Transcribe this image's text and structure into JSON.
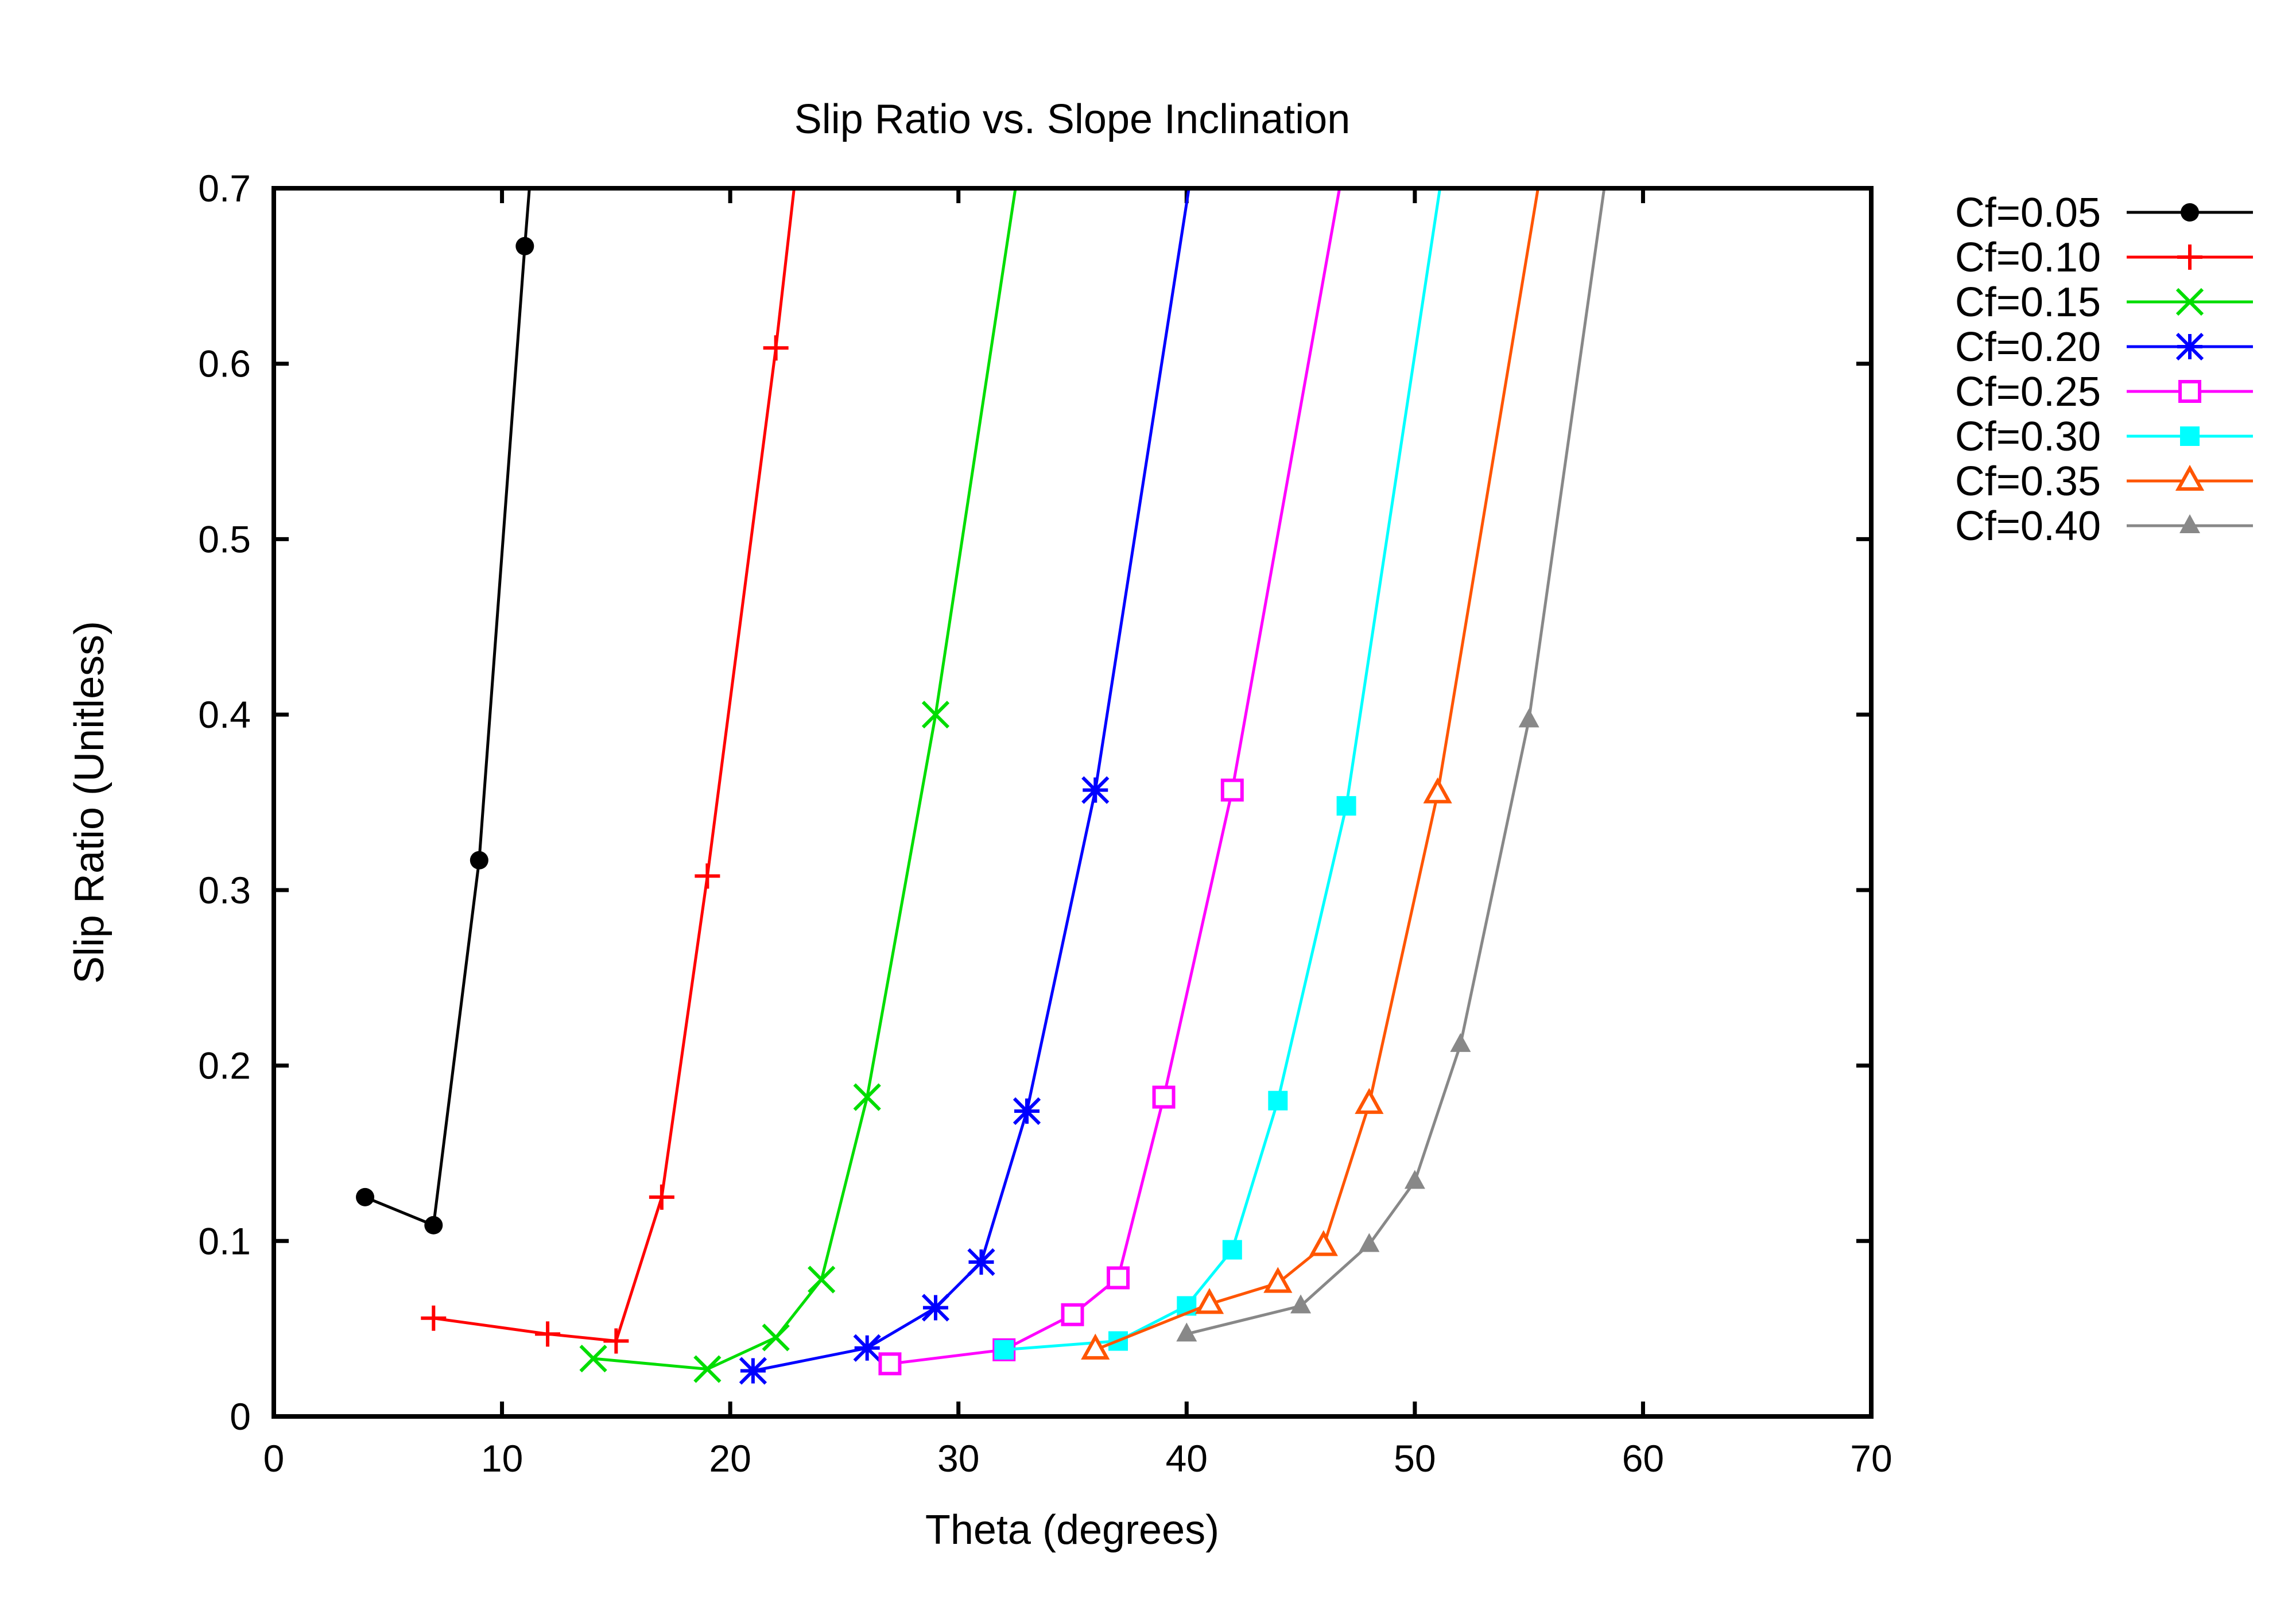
{
  "chart_data": {
    "type": "line",
    "title": "Slip Ratio vs. Slope Inclination",
    "xlabel": "Theta (degrees)",
    "ylabel": "Slip Ratio (Unitless)",
    "xlim": [
      0,
      70
    ],
    "ylim": [
      0,
      0.7
    ],
    "xticks": [
      "0",
      "10",
      "20",
      "30",
      "40",
      "50",
      "60",
      "70"
    ],
    "yticks": [
      "0",
      "0.1",
      "0.2",
      "0.3",
      "0.4",
      "0.5",
      "0.6",
      "0.7"
    ],
    "grid": false,
    "legend_position": "outside-top-right",
    "series": [
      {
        "name": "Cf=0.05",
        "color": "#000000",
        "marker": "filled-circle",
        "x": [
          4,
          7,
          9,
          11,
          11.2
        ],
        "y": [
          0.125,
          0.109,
          0.317,
          0.667,
          0.7
        ]
      },
      {
        "name": "Cf=0.10",
        "color": "#ff0000",
        "marker": "plus",
        "x": [
          7,
          12,
          15,
          17,
          19,
          22,
          22.8
        ],
        "y": [
          0.056,
          0.047,
          0.043,
          0.125,
          0.308,
          0.609,
          0.7
        ]
      },
      {
        "name": "Cf=0.15",
        "color": "#00dd00",
        "marker": "x",
        "x": [
          14,
          19,
          22,
          24,
          26,
          29,
          32.5
        ],
        "y": [
          0.033,
          0.027,
          0.045,
          0.078,
          0.182,
          0.4,
          0.7
        ]
      },
      {
        "name": "Cf=0.20",
        "color": "#0000ff",
        "marker": "star",
        "x": [
          21,
          26,
          29,
          31,
          33,
          36,
          40.1
        ],
        "y": [
          0.026,
          0.039,
          0.062,
          0.088,
          0.174,
          0.357,
          0.7
        ]
      },
      {
        "name": "Cf=0.25",
        "color": "#ff00ff",
        "marker": "open-square",
        "x": [
          27,
          32,
          35,
          37,
          39,
          42,
          46.7
        ],
        "y": [
          0.03,
          0.038,
          0.058,
          0.079,
          0.182,
          0.357,
          0.7
        ]
      },
      {
        "name": "Cf=0.30",
        "color": "#00ffff",
        "marker": "filled-square",
        "x": [
          32,
          37,
          40,
          42,
          44,
          47,
          51.1
        ],
        "y": [
          0.038,
          0.043,
          0.063,
          0.095,
          0.18,
          0.348,
          0.7
        ]
      },
      {
        "name": "Cf=0.35",
        "color": "#ff5500",
        "marker": "open-triangle",
        "x": [
          36,
          41,
          44,
          46,
          48,
          51,
          55.4
        ],
        "y": [
          0.038,
          0.064,
          0.076,
          0.097,
          0.178,
          0.355,
          0.7
        ]
      },
      {
        "name": "Cf=0.40",
        "color": "#888888",
        "marker": "filled-triangle",
        "x": [
          40,
          45,
          48,
          50,
          52,
          55,
          58.3
        ],
        "y": [
          0.047,
          0.063,
          0.098,
          0.134,
          0.212,
          0.397,
          0.7
        ]
      }
    ]
  }
}
